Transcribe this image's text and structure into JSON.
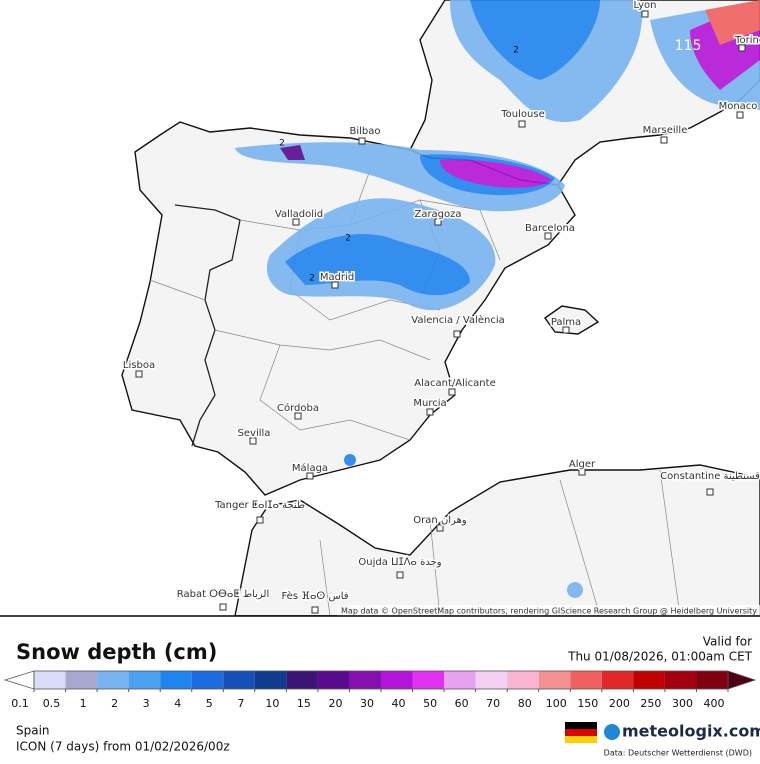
{
  "map": {
    "cities": [
      "Lyon",
      "Torino",
      "Monaco",
      "Toulouse",
      "Marseille",
      "Bilbao",
      "Valladolid",
      "Zaragoza",
      "Barcelona",
      "Madrid",
      "Valencia / València",
      "Palma",
      "Lisboa",
      "Alacant/Alicante",
      "Murcia",
      "Córdoba",
      "Sevilla",
      "Málaga",
      "Tanger ⵟⴰⵏⵊⴰ طنجة",
      "Alger",
      "Constantine قسنطينة",
      "Oran وهران",
      "Oujda ⵡⵊⴷⴰ وجدة",
      "Rabat ⵔⴱⴰⵟ الرباط",
      "Fès ⴼⴰⵙ فاس"
    ],
    "contour_labels": [
      "2",
      "2",
      "2",
      "2",
      "115"
    ],
    "attribution": "Map data © OpenStreetMap contributors, rendering GIScience Research Group @ Heidelberg University"
  },
  "legend": {
    "title": "Snow depth (cm)",
    "valid_label": "Valid for",
    "valid_time": "Thu 01/08/2026, 01:00am CET",
    "ticks": [
      0.1,
      0.5,
      1,
      2,
      3,
      4,
      5,
      7,
      10,
      15,
      20,
      30,
      40,
      50,
      60,
      70,
      80,
      100,
      150,
      200,
      250,
      300,
      400
    ],
    "colors": [
      "#d8dcf8",
      "#a8a8d0",
      "#78b4f0",
      "#4ca0f0",
      "#2084f0",
      "#1c6ce0",
      "#1450b8",
      "#103c90",
      "#3c1478",
      "#5a0a8c",
      "#8410b0",
      "#b414d8",
      "#e030f0",
      "#e8a0f0",
      "#f4d0f4",
      "#f8b4d0",
      "#f49090",
      "#f06060",
      "#e02828",
      "#c00000",
      "#a00010",
      "#800010"
    ],
    "under_color": "#ffffff",
    "over_color": "#500010"
  },
  "footer": {
    "region": "Spain",
    "model": "ICON (7 days) from 01/02/2026/00z",
    "brand": "meteologix.com",
    "source": "Data: Deutscher Wetterdienst (DWD)"
  }
}
